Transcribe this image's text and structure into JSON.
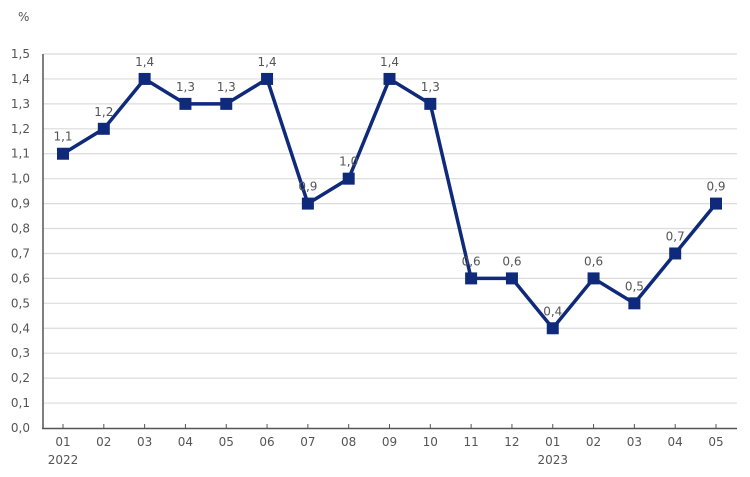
{
  "chart_data": {
    "type": "line",
    "ylabel": "%",
    "ylim": [
      0,
      1.5
    ],
    "yticks": [
      "0,0",
      "0,1",
      "0,2",
      "0,3",
      "0,4",
      "0,5",
      "0,6",
      "0,7",
      "0,8",
      "0,9",
      "1,0",
      "1,1",
      "1,2",
      "1,3",
      "1,4",
      "1,5"
    ],
    "categories": [
      "01",
      "02",
      "03",
      "04",
      "05",
      "06",
      "07",
      "08",
      "09",
      "10",
      "11",
      "12",
      "01",
      "02",
      "03",
      "04",
      "05"
    ],
    "year_labels": [
      {
        "index": 0,
        "label": "2022"
      },
      {
        "index": 12,
        "label": "2023"
      }
    ],
    "values": [
      1.1,
      1.2,
      1.4,
      1.3,
      1.3,
      1.4,
      0.9,
      1.0,
      1.4,
      1.3,
      0.6,
      0.6,
      0.4,
      0.6,
      0.5,
      0.7,
      0.9
    ],
    "data_labels": [
      "1,1",
      "1,2",
      "1,4",
      "1,3",
      "1,3",
      "1,4",
      "0,9",
      "1,0",
      "1,4",
      "1,3",
      "0,6",
      "0,6",
      "0,4",
      "0,6",
      "0,5",
      "0,7",
      "0,9"
    ],
    "grid": true,
    "legend": "none",
    "color": "#0f2a7a"
  }
}
